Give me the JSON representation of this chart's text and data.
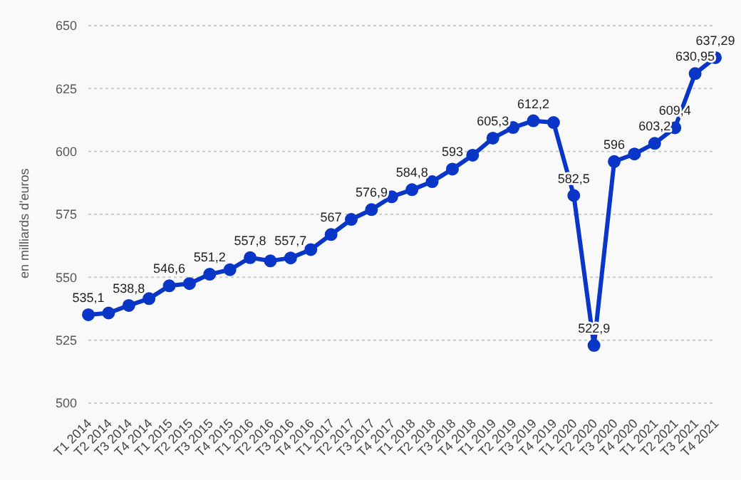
{
  "chart_data": {
    "type": "line",
    "ylabel": "en milliards d'euros",
    "categories": [
      "T1 2014",
      "T2 2014",
      "T3 2014",
      "T4 2014",
      "T1 2015",
      "T2 2015",
      "T3 2015",
      "T4 2015",
      "T1 2016",
      "T2 2016",
      "T3 2016",
      "T4 2016",
      "T1 2017",
      "T2 2017",
      "T3 2017",
      "T4 2017",
      "T1 2018",
      "T2 2018",
      "T3 2018",
      "T4 2018",
      "T1 2019",
      "T2 2019",
      "T3 2019",
      "T4 2019",
      "T1 2020",
      "T2 2020",
      "T3 2020",
      "T4 2020",
      "T1 2021",
      "T2 2021",
      "T3 2021",
      "T4 2021"
    ],
    "series": [
      {
        "color": "#0a36c8",
        "values": [
          535.1,
          535.8,
          538.8,
          541.5,
          546.6,
          547.5,
          551.2,
          553,
          557.8,
          556.5,
          557.7,
          561,
          567,
          573,
          576.9,
          582,
          584.8,
          588,
          593,
          598.5,
          605.3,
          609.5,
          612.2,
          611.5,
          582.5,
          522.9,
          596,
          599,
          603.2,
          609.4,
          630.95,
          637.29
        ],
        "value_labels": [
          "535,1",
          null,
          "538,8",
          null,
          "546,6",
          null,
          "551,2",
          null,
          "557,8",
          null,
          "557,7",
          null,
          "567",
          null,
          "576,9",
          null,
          "584,8",
          null,
          "593",
          null,
          "605,3",
          null,
          "612,2",
          null,
          "582,5",
          "522,9",
          "596",
          null,
          "603,2",
          "609,4",
          "630,95",
          "637,29"
        ]
      }
    ],
    "ylim": [
      500,
      650
    ],
    "yticks": [
      500,
      525,
      550,
      575,
      600,
      625,
      650
    ],
    "grid": "y",
    "marker": "circle",
    "line_style": "solid"
  }
}
